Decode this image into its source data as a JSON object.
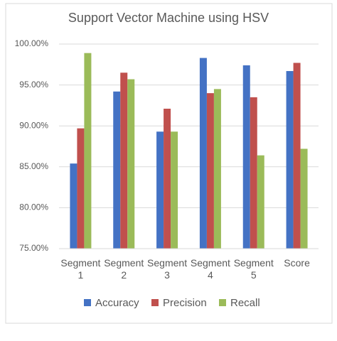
{
  "chart_data": {
    "type": "bar",
    "title": "Support Vector Machine using HSV",
    "categories": [
      "Segment 1",
      "Segment 2",
      "Segment 3",
      "Segment 4",
      "Segment 5",
      "Score"
    ],
    "series": [
      {
        "name": "Accuracy",
        "color": "#4472c4",
        "values": [
          85.4,
          94.2,
          89.3,
          98.3,
          97.4,
          96.7
        ]
      },
      {
        "name": "Precision",
        "color": "#c0504d",
        "values": [
          89.7,
          96.5,
          92.1,
          94.0,
          93.5,
          97.7
        ]
      },
      {
        "name": "Recall",
        "color": "#9bbb59",
        "values": [
          98.9,
          95.7,
          89.3,
          94.5,
          86.4,
          87.2
        ]
      }
    ],
    "ylim": [
      75,
      100
    ],
    "yticks": [
      {
        "value": 75,
        "label": "75.00%"
      },
      {
        "value": 80,
        "label": "80.00%"
      },
      {
        "value": 85,
        "label": "85.00%"
      },
      {
        "value": 90,
        "label": "90.00%"
      },
      {
        "value": 95,
        "label": "95.00%"
      },
      {
        "value": 100,
        "label": "100.00%"
      }
    ],
    "grid": true,
    "legend": "bottom"
  }
}
